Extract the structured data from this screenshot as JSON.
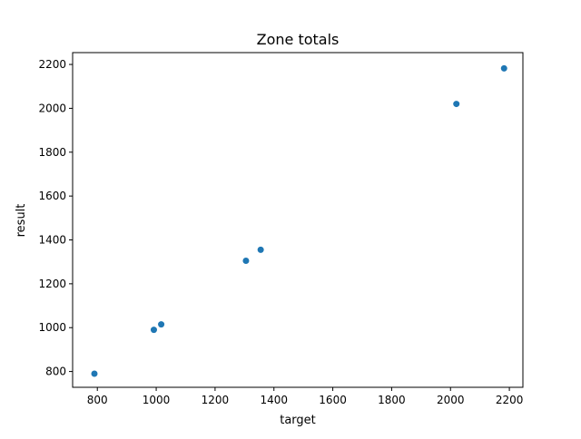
{
  "chart_data": {
    "type": "scatter",
    "title": "Zone totals",
    "xlabel": "target",
    "ylabel": "result",
    "xlim": [
      716,
      2246
    ],
    "ylim": [
      728,
      2254
    ],
    "xticks": [
      800,
      1000,
      1200,
      1400,
      1600,
      1800,
      2000,
      2200
    ],
    "yticks": [
      800,
      1000,
      1200,
      1400,
      1600,
      1800,
      2000,
      2200
    ],
    "grid": false,
    "series": [
      {
        "color": "#1f77b4",
        "points": [
          {
            "x": 790,
            "y": 790
          },
          {
            "x": 992,
            "y": 990
          },
          {
            "x": 1017,
            "y": 1015
          },
          {
            "x": 1305,
            "y": 1305
          },
          {
            "x": 1355,
            "y": 1355
          },
          {
            "x": 2020,
            "y": 2020
          },
          {
            "x": 2182,
            "y": 2182
          }
        ]
      }
    ]
  }
}
